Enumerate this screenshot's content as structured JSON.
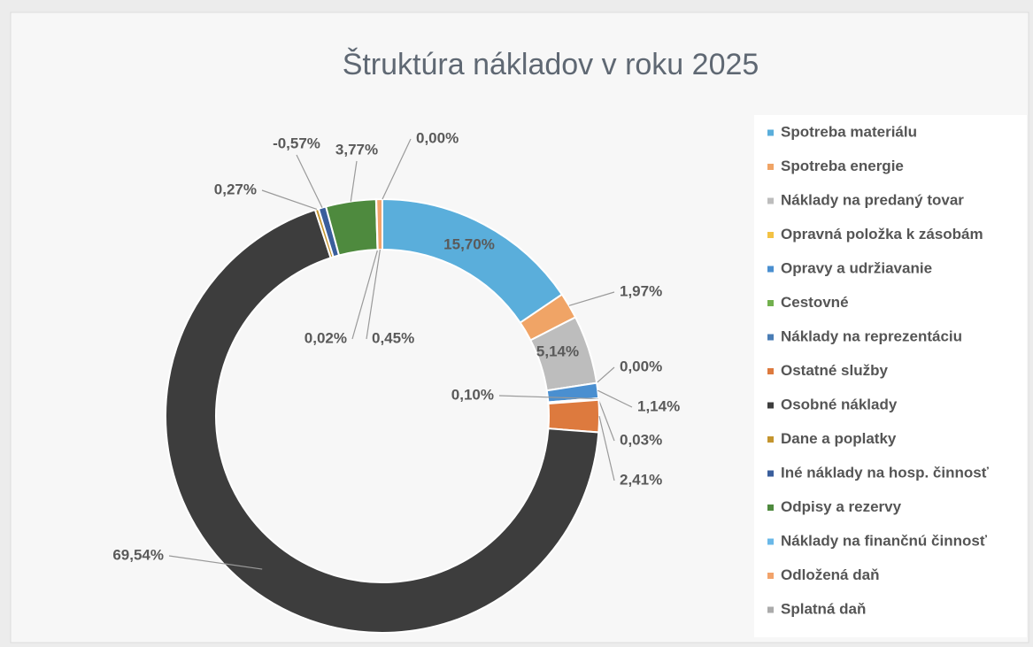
{
  "chart_data": {
    "type": "donut",
    "title": "Štruktúra nákladov v roku 2025",
    "categories": [
      "Spotreba materiálu",
      "Spotreba energie",
      "Náklady na predaný tovar",
      "Opravná položka k zásobám",
      "Opravy a udržiavanie",
      "Cestovné",
      "Náklady na reprezentáciu",
      "Ostatné služby",
      "Osobné náklady",
      "Dane a poplatky",
      "Iné náklady na hosp. činnosť",
      "Odpisy a rezervy",
      "Náklady na finančnú činnosť",
      "Odložená daň",
      "Splatná daň"
    ],
    "values": [
      15.7,
      1.97,
      5.14,
      0.0,
      1.14,
      0.1,
      0.03,
      2.41,
      69.54,
      0.27,
      -0.57,
      3.77,
      0.02,
      0.45,
      0.0
    ],
    "value_labels": [
      "15,70%",
      "1,97%",
      "5,14%",
      "0,00%",
      "1,14%",
      "0,10%",
      "0,03%",
      "2,41%",
      "69,54%",
      "0,27%",
      "-0,57%",
      "3,77%",
      "0,02%",
      "0,45%",
      "0,00%"
    ],
    "colors": [
      "#5aaedb",
      "#f0a466",
      "#bdbdbd",
      "#f3c244",
      "#4a8fd0",
      "#72b04e",
      "#4a7db5",
      "#dd7a3e",
      "#3d3d3d",
      "#c4952e",
      "#3a5e9c",
      "#4e8a3e",
      "#6ab8e8",
      "#f2a36b",
      "#ababab"
    ],
    "legend": "right"
  }
}
